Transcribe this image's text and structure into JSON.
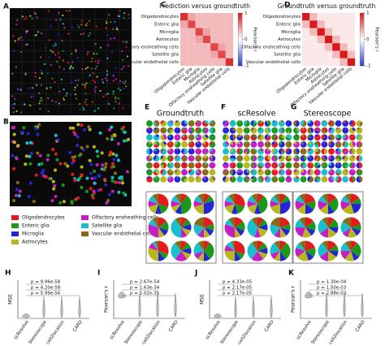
{
  "panel_letters": [
    "A",
    "B",
    "C",
    "D",
    "E",
    "F",
    "G",
    "H",
    "I",
    "J",
    "K"
  ],
  "cell_types": [
    "Oligodendrocytes",
    "Enteric glia",
    "Microglia",
    "Astrocytes",
    "Olfactory ensheathing cells",
    "Satellite glia",
    "Vascular endothelial cells"
  ],
  "cell_colors": [
    "#e41a1c",
    "#1a9a1a",
    "#2424d8",
    "#b8b81c",
    "#c41ec4",
    "#18bfcf",
    "#8a6a16"
  ],
  "heatmaps": [
    {
      "title": "Prediction versus groundtruth",
      "colorbar_label": "Pearson's r",
      "clim": [
        -1,
        1
      ],
      "cticks": [
        1,
        0,
        -1
      ],
      "values": [
        [
          0.9,
          0.4,
          0.3,
          0.3,
          0.3,
          0.3,
          0.3
        ],
        [
          0.4,
          0.8,
          0.3,
          0.3,
          0.3,
          0.3,
          0.3
        ],
        [
          0.3,
          0.3,
          0.8,
          0.4,
          0.3,
          0.3,
          0.3
        ],
        [
          0.3,
          0.3,
          0.4,
          0.8,
          0.3,
          0.3,
          0.3
        ],
        [
          0.3,
          0.3,
          0.3,
          0.3,
          0.8,
          0.4,
          0.3
        ],
        [
          0.3,
          0.3,
          0.3,
          0.3,
          0.4,
          0.8,
          0.3
        ],
        [
          0.3,
          0.3,
          0.3,
          0.3,
          0.3,
          0.3,
          0.9
        ]
      ]
    },
    {
      "title": "Groundtruth versus groundtruth",
      "colorbar_label": "Pearson's r",
      "clim": [
        -1,
        1
      ],
      "cticks": [
        1,
        0,
        -1
      ],
      "values": [
        [
          1,
          0.3,
          0.1,
          0.1,
          0.1,
          0.1,
          0.1
        ],
        [
          0.3,
          1,
          0.3,
          0.1,
          0.1,
          0.1,
          0.1
        ],
        [
          0.1,
          0.3,
          1,
          0.3,
          0.1,
          0.1,
          0.1
        ],
        [
          0.1,
          0.1,
          0.3,
          1,
          0.3,
          0.1,
          0.1
        ],
        [
          0.1,
          0.1,
          0.1,
          0.3,
          1,
          0.3,
          0.1
        ],
        [
          0.1,
          0.1,
          0.1,
          0.1,
          0.3,
          1,
          0.3
        ],
        [
          0.1,
          0.1,
          0.1,
          0.1,
          0.1,
          0.3,
          1
        ]
      ]
    }
  ],
  "pies": [
    {
      "title": "Groundtruth",
      "values": [
        [
          0.3,
          0.15,
          0.1,
          0.15,
          0.1,
          0.1,
          0.1
        ],
        [
          0.1,
          0.4,
          0.1,
          0.1,
          0.1,
          0.1,
          0.1
        ],
        [
          0.1,
          0.1,
          0.3,
          0.2,
          0.1,
          0.1,
          0.1
        ],
        [
          0.15,
          0.15,
          0.1,
          0.1,
          0.3,
          0.1,
          0.1
        ],
        [
          0.1,
          0.1,
          0.1,
          0.1,
          0.1,
          0.4,
          0.1
        ],
        [
          0.2,
          0.1,
          0.1,
          0.1,
          0.1,
          0.2,
          0.2
        ],
        [
          0.3,
          0.1,
          0.1,
          0.3,
          0.1,
          0.05,
          0.05
        ],
        [
          0.1,
          0.1,
          0.1,
          0.1,
          0.2,
          0.3,
          0.1
        ],
        [
          0.1,
          0.3,
          0.1,
          0.1,
          0.1,
          0.2,
          0.1
        ]
      ]
    },
    {
      "title": "scResolve",
      "values": [
        [
          0.3,
          0.15,
          0.1,
          0.15,
          0.1,
          0.1,
          0.1
        ],
        [
          0.1,
          0.35,
          0.1,
          0.15,
          0.1,
          0.1,
          0.1
        ],
        [
          0.1,
          0.1,
          0.3,
          0.2,
          0.1,
          0.1,
          0.1
        ],
        [
          0.15,
          0.15,
          0.1,
          0.1,
          0.3,
          0.1,
          0.1
        ],
        [
          0.1,
          0.1,
          0.1,
          0.15,
          0.1,
          0.35,
          0.1
        ],
        [
          0.2,
          0.1,
          0.1,
          0.1,
          0.1,
          0.2,
          0.2
        ],
        [
          0.3,
          0.1,
          0.1,
          0.25,
          0.1,
          0.1,
          0.05
        ],
        [
          0.1,
          0.1,
          0.1,
          0.1,
          0.2,
          0.3,
          0.1
        ],
        [
          0.1,
          0.3,
          0.1,
          0.1,
          0.1,
          0.2,
          0.1
        ]
      ]
    },
    {
      "title": "Stereoscope",
      "values": [
        [
          0.2,
          0.15,
          0.15,
          0.15,
          0.15,
          0.1,
          0.1
        ],
        [
          0.15,
          0.25,
          0.1,
          0.15,
          0.15,
          0.1,
          0.1
        ],
        [
          0.15,
          0.1,
          0.2,
          0.2,
          0.15,
          0.1,
          0.1
        ],
        [
          0.15,
          0.15,
          0.1,
          0.15,
          0.2,
          0.15,
          0.1
        ],
        [
          0.1,
          0.15,
          0.1,
          0.15,
          0.15,
          0.25,
          0.1
        ],
        [
          0.2,
          0.1,
          0.1,
          0.15,
          0.1,
          0.2,
          0.15
        ],
        [
          0.2,
          0.15,
          0.1,
          0.2,
          0.15,
          0.1,
          0.1
        ],
        [
          0.15,
          0.1,
          0.1,
          0.15,
          0.15,
          0.25,
          0.1
        ],
        [
          0.1,
          0.25,
          0.1,
          0.15,
          0.15,
          0.15,
          0.1
        ]
      ]
    }
  ],
  "violins": [
    {
      "ylabel": "MSE",
      "categories": [
        "scResolve",
        "Stereoscope",
        "cell2location",
        "CARD"
      ],
      "pvalues": [
        "p = 9.96e-58",
        "p = 4.20e-58",
        "p = 5.99e-56"
      ]
    },
    {
      "ylabel": "Pearson's r",
      "categories": [
        "scResolve",
        "Stereoscope",
        "cell2location",
        "CARD"
      ],
      "pvalues": [
        "p = 2.67e-54",
        "p = 1.63e-34",
        "p = 5.02e-35"
      ]
    },
    {
      "ylabel": "MSE",
      "categories": [
        "scResolve",
        "Stereoscope",
        "cell2location",
        "CARD"
      ],
      "pvalues": [
        "p = 4.33e-05",
        "p = 2.17e-05",
        "p = 2.17e-05"
      ]
    },
    {
      "ylabel": "Pearson's r",
      "categories": [
        "scResolve",
        "Stereoscope",
        "cell2location",
        "CARD"
      ],
      "pvalues": [
        "p = 1.30e-04",
        "p = 1.50e-03",
        "p = 2.88e-03"
      ]
    }
  ]
}
